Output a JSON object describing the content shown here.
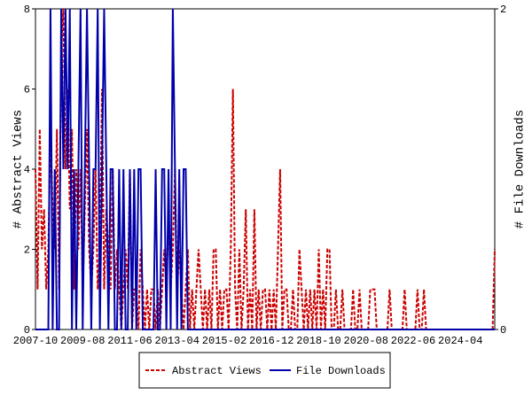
{
  "chart_data": {
    "type": "line",
    "y_label": "# Abstract Views",
    "y2_label": "# File Downloads",
    "categories": [
      "2007-10",
      null,
      null,
      null,
      null,
      null,
      null,
      null,
      null,
      null,
      null,
      null,
      null,
      null,
      null,
      null,
      null,
      null,
      null,
      null,
      null,
      null,
      "2009-08",
      null,
      null,
      null,
      null,
      null,
      null,
      null,
      null,
      null,
      null,
      null,
      null,
      null,
      null,
      null,
      null,
      null,
      null,
      null,
      null,
      null,
      "2011-06",
      null,
      null,
      null,
      null,
      null,
      null,
      null,
      null,
      null,
      null,
      null,
      null,
      null,
      null,
      null,
      null,
      null,
      null,
      null,
      null,
      null,
      "2013-04",
      null,
      null,
      null,
      null,
      null,
      null,
      null,
      null,
      null,
      null,
      null,
      null,
      null,
      null,
      null,
      null,
      null,
      null,
      null,
      null,
      null,
      "2015-02",
      null,
      null,
      null,
      null,
      null,
      null,
      null,
      null,
      null,
      null,
      null,
      null,
      null,
      null,
      null,
      null,
      null,
      null,
      null,
      null,
      null,
      "2016-12",
      null,
      null,
      null,
      null,
      null,
      null,
      null,
      null,
      null,
      null,
      null,
      null,
      null,
      null,
      null,
      null,
      null,
      null,
      null,
      null,
      null,
      "2018-10",
      null,
      null,
      null,
      null,
      null,
      null,
      null,
      null,
      null,
      null,
      null,
      null,
      null,
      null,
      null,
      null,
      null,
      null,
      null,
      null,
      null,
      "2020-08",
      null,
      null,
      null,
      null,
      null,
      null,
      null,
      null,
      null,
      null,
      null,
      null,
      null,
      null,
      null,
      null,
      null,
      null,
      null,
      null,
      null,
      "2022-06",
      null,
      null,
      null,
      null,
      null,
      null,
      null,
      null,
      null,
      null,
      null,
      null,
      null,
      null,
      null,
      null,
      null,
      null,
      null,
      null,
      null,
      "2024-04",
      null,
      null,
      null,
      null,
      null,
      null,
      null,
      null,
      null,
      null,
      null,
      null,
      null,
      null,
      null,
      null
    ],
    "series": [
      {
        "name": "Abstract Views",
        "color": "#cc0000",
        "dash": true,
        "values": [
          4,
          1,
          5,
          2,
          3,
          1,
          2,
          5,
          3,
          2,
          5,
          1,
          7,
          8,
          4,
          6,
          3,
          5,
          1,
          4,
          2,
          4,
          1,
          3,
          5,
          2,
          1,
          2,
          4,
          1,
          2,
          6,
          1,
          3,
          2,
          1,
          4,
          1,
          2,
          1,
          0,
          1,
          2,
          1,
          4,
          0,
          1,
          1,
          0,
          2,
          1,
          0,
          1,
          0,
          1,
          1,
          0,
          1,
          0,
          1,
          2,
          1,
          3,
          1,
          2,
          4,
          1,
          2,
          1,
          0,
          1,
          2,
          0,
          1,
          0,
          1,
          2,
          1,
          0,
          1,
          0,
          1,
          0,
          2,
          2,
          0,
          1,
          0,
          1,
          1,
          0,
          2,
          6,
          1,
          0,
          2,
          0,
          1,
          3,
          0,
          1,
          0,
          3,
          0,
          1,
          0,
          1,
          1,
          0,
          1,
          0,
          1,
          0,
          2,
          4,
          0,
          1,
          1,
          0,
          0,
          1,
          0,
          0,
          2,
          1,
          0,
          1,
          0,
          1,
          0,
          1,
          0,
          2,
          0,
          1,
          0,
          2,
          2,
          0,
          0,
          1,
          0,
          0,
          1,
          0,
          0,
          0,
          0,
          1,
          0,
          0,
          1,
          0,
          0,
          0,
          0,
          1,
          1,
          1,
          0,
          0,
          0,
          0,
          0,
          0,
          1,
          0,
          0,
          0,
          0,
          0,
          0,
          1,
          0,
          0,
          0,
          0,
          0,
          1,
          0,
          0,
          1,
          0,
          0,
          0,
          0,
          0,
          0,
          0,
          0,
          0,
          0,
          0,
          0,
          0,
          0,
          0,
          0,
          0,
          0,
          0,
          0,
          0,
          0,
          0,
          0,
          0,
          0,
          0,
          0,
          0,
          0,
          0,
          0,
          2
        ]
      },
      {
        "name": "File Downloads",
        "color": "#0000aa",
        "axis": "y2",
        "values": [
          0,
          0,
          0,
          0,
          0,
          0,
          0,
          2,
          0,
          1,
          0,
          0,
          2,
          1,
          2,
          1,
          2,
          0,
          1,
          0,
          1,
          2,
          0,
          1,
          2,
          1,
          0,
          1,
          1,
          2,
          0,
          1,
          2,
          1,
          0,
          1,
          1,
          0,
          0,
          1,
          0,
          1,
          0,
          0,
          1,
          0,
          1,
          0,
          1,
          1,
          0,
          0,
          0,
          0,
          0,
          0,
          1,
          0,
          0,
          1,
          1,
          0,
          1,
          0,
          2,
          1,
          0,
          1,
          0,
          1,
          1,
          0,
          0,
          0,
          0,
          0,
          0,
          0,
          0,
          0,
          0,
          0,
          0,
          0,
          0,
          0,
          0,
          0,
          0,
          0,
          0,
          0,
          0,
          0,
          0,
          0,
          0,
          0,
          0,
          0,
          0,
          0,
          0,
          0,
          0,
          0,
          0,
          0,
          0,
          0,
          0,
          0,
          0,
          0,
          0,
          0,
          0,
          0,
          0,
          0,
          0,
          0,
          0,
          0,
          0,
          0,
          0,
          0,
          0,
          0,
          0,
          0,
          0,
          0,
          0,
          0,
          0,
          0,
          0,
          0,
          0,
          0,
          0,
          0,
          0,
          0,
          0,
          0,
          0,
          0,
          0,
          0,
          0,
          0,
          0,
          0,
          0,
          0,
          0,
          0,
          0,
          0,
          0,
          0,
          0,
          0,
          0,
          0,
          0,
          0,
          0,
          0,
          0,
          0,
          0,
          0,
          0,
          0,
          0,
          0,
          0,
          0,
          0,
          0,
          0,
          0,
          0,
          0,
          0,
          0,
          0,
          0,
          0,
          0,
          0,
          0,
          0,
          0,
          0,
          0,
          0,
          0,
          0,
          0,
          0,
          0,
          0,
          0,
          0,
          0,
          0,
          0,
          0,
          0,
          0
        ]
      }
    ],
    "ylim": [
      0,
      8
    ],
    "yticks": [
      0,
      2,
      4,
      6,
      8
    ],
    "y2lim": [
      0,
      2
    ],
    "y2ticks": [
      0,
      2
    ],
    "legend": "bottom"
  }
}
